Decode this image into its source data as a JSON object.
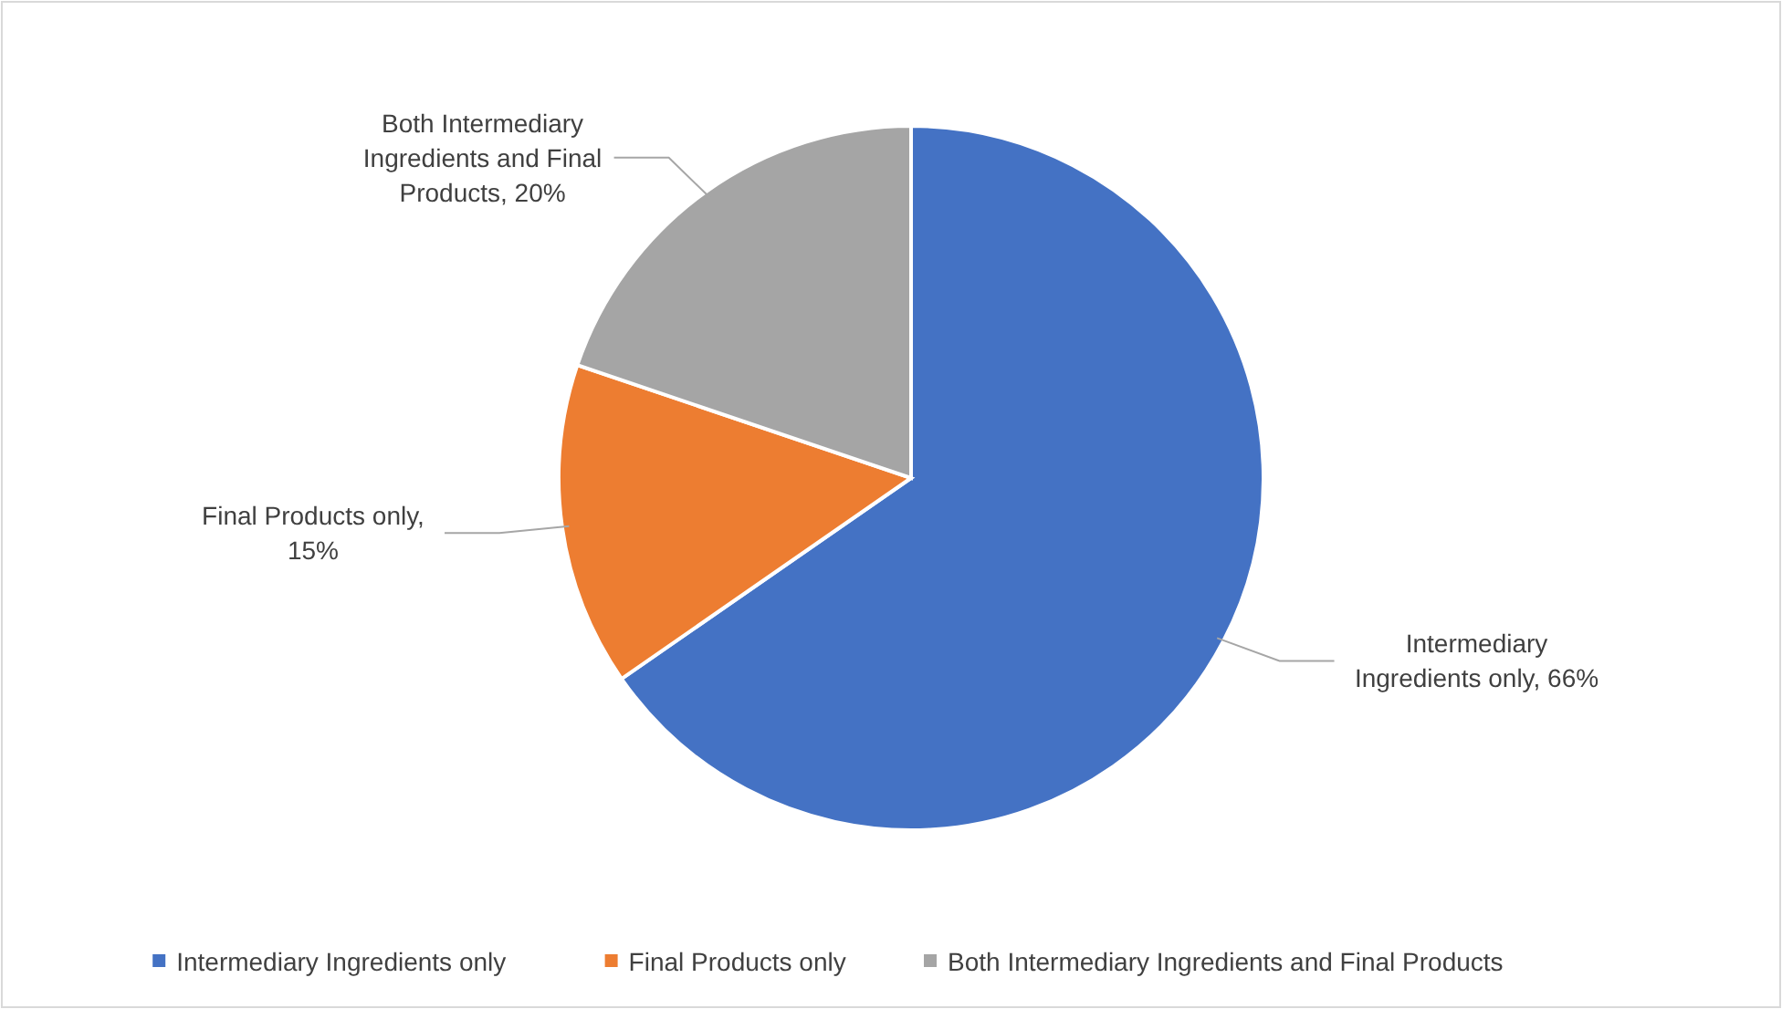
{
  "chart_data": {
    "type": "pie",
    "categories": [
      "Intermediary Ingredients only",
      "Final Products only",
      "Both Intermediary Ingredients and Final Products"
    ],
    "values": [
      66,
      15,
      20
    ],
    "value_labels": [
      "Intermediary Ingredients only, 66%",
      "Final Products only, 15%",
      "Both Intermediary Ingredients and Final Products, 20%"
    ],
    "colors": [
      "#4472c4",
      "#ed7d31",
      "#a5a5a5"
    ],
    "legend": "bottom"
  }
}
